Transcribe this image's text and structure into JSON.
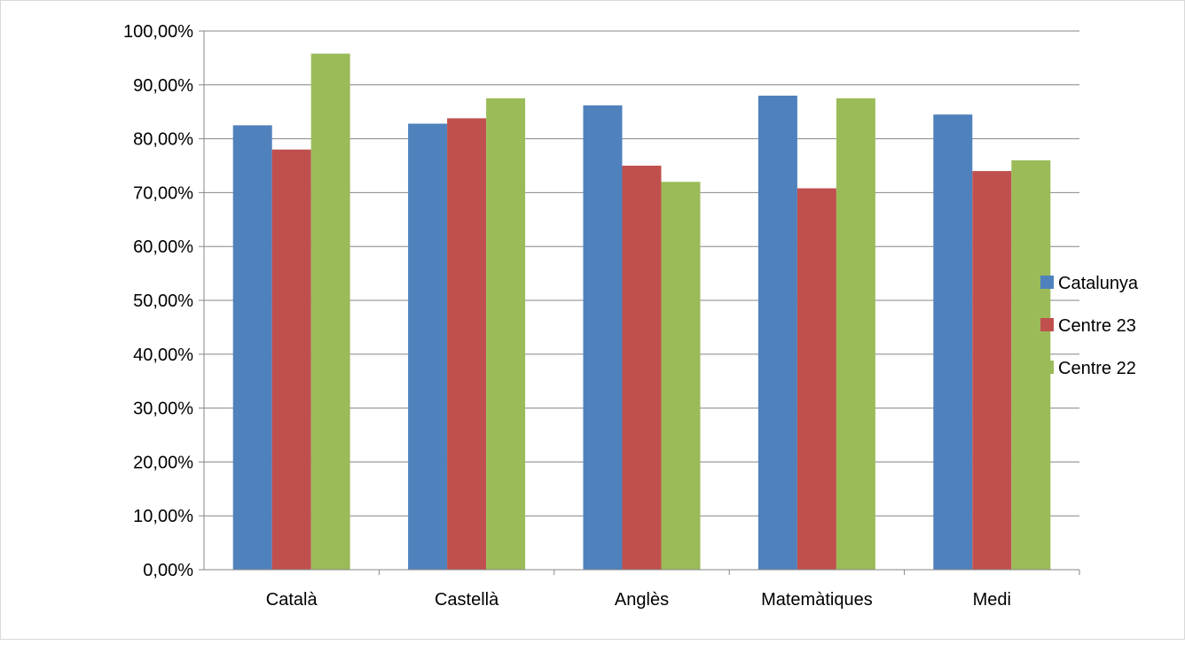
{
  "chart_data": {
    "type": "bar",
    "title": "",
    "xlabel": "",
    "ylabel": "",
    "categories": [
      "Català",
      "Castellà",
      "Anglès",
      "Matemàtiques",
      "Medi"
    ],
    "series": [
      {
        "name": "Catalunya",
        "color": "#4f81bd",
        "values": [
          82.5,
          82.8,
          86.2,
          88.0,
          84.5
        ]
      },
      {
        "name": "Centre 23",
        "color": "#c0504d",
        "values": [
          78.0,
          83.8,
          75.0,
          70.8,
          74.0
        ]
      },
      {
        "name": "Centre 22",
        "color": "#9bbb59",
        "values": [
          95.8,
          87.5,
          72.0,
          87.5,
          76.0
        ]
      }
    ],
    "ylim": [
      0,
      100
    ],
    "yticks": [
      0,
      10,
      20,
      30,
      40,
      50,
      60,
      70,
      80,
      90,
      100
    ],
    "ytick_labels": [
      "0,00%",
      "10,00%",
      "20,00%",
      "30,00%",
      "40,00%",
      "50,00%",
      "60,00%",
      "70,00%",
      "80,00%",
      "90,00%",
      "100,00%"
    ],
    "grid": true,
    "legend_position": "right",
    "colors": {
      "gridline": "#868686",
      "axis": "#868686"
    }
  }
}
